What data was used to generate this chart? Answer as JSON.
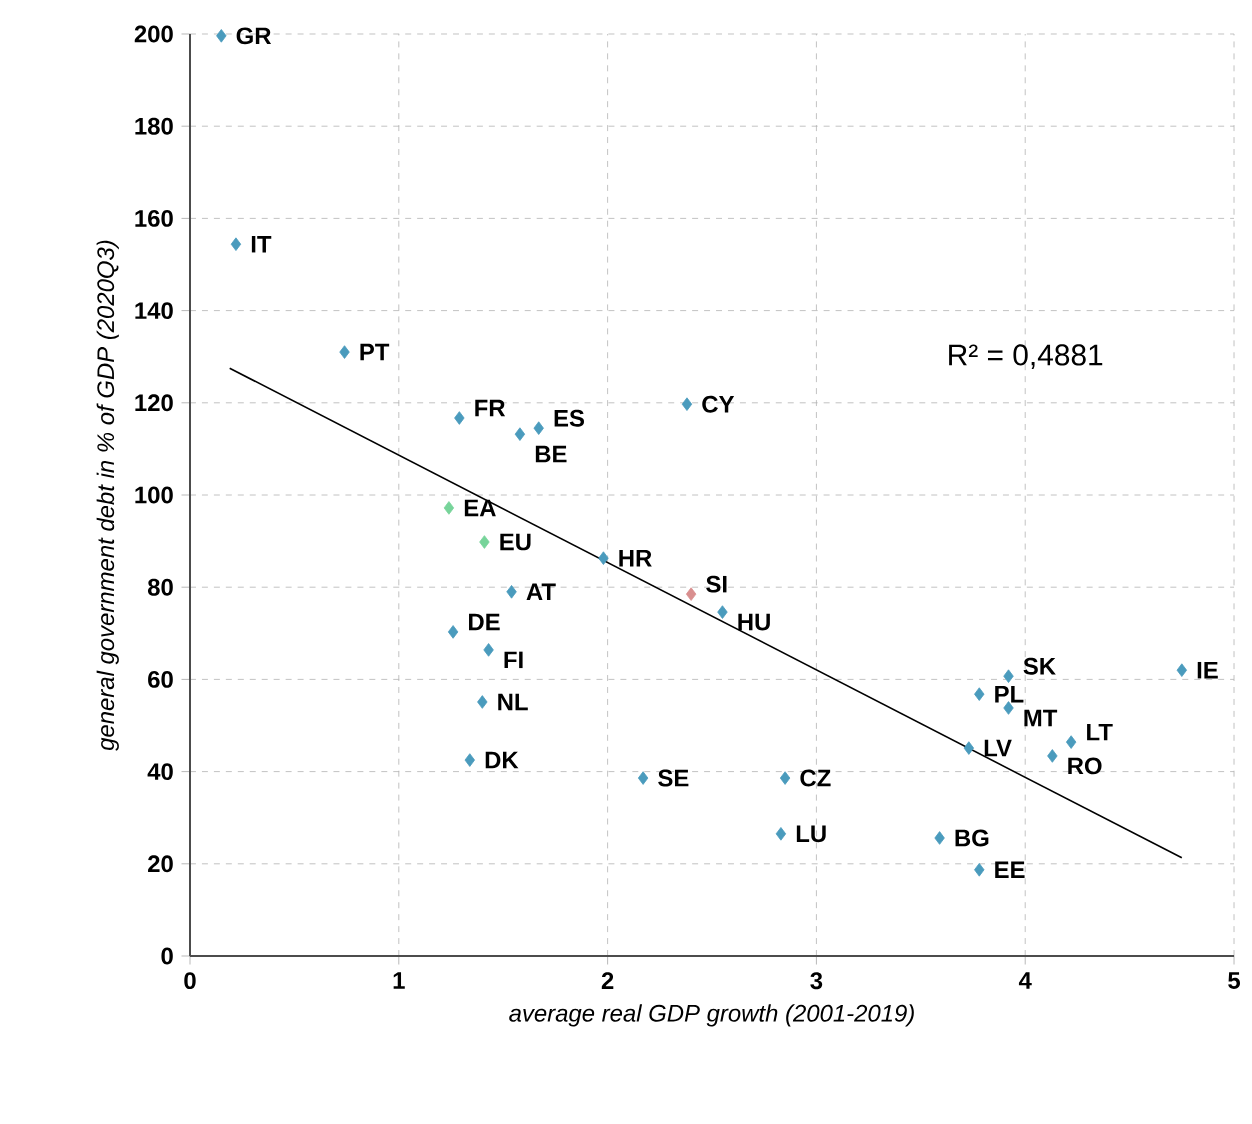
{
  "chart_data": {
    "type": "scatter",
    "xlabel": "average real GDP growth (2001-2019)",
    "ylabel": "general government debt in % of GDP (2020Q3)",
    "xlim": [
      0,
      5
    ],
    "ylim": [
      0,
      200
    ],
    "xticks": [
      0,
      1,
      2,
      3,
      4,
      5
    ],
    "yticks": [
      0,
      20,
      40,
      60,
      80,
      100,
      120,
      140,
      160,
      180,
      200
    ],
    "grid": true,
    "marker": "diamond",
    "series": [
      {
        "color": "#4a9bbd",
        "x": [
          0.15,
          0.22,
          0.74,
          1.29,
          1.58,
          1.67,
          2.38,
          1.98,
          1.54,
          2.55,
          1.26,
          1.43,
          1.4,
          1.34,
          2.17,
          2.85,
          2.83,
          3.59,
          3.78,
          3.73,
          3.78,
          3.92,
          3.92,
          4.22,
          4.13,
          4.75
        ],
        "values": [
          199.6,
          154.4,
          131,
          116.7,
          113.2,
          114.5,
          119.7,
          86.3,
          79,
          74.6,
          70.3,
          66.4,
          55.1,
          42.5,
          38.6,
          38.6,
          26.5,
          25.6,
          18.7,
          45.1,
          56.8,
          60.7,
          53.8,
          46.4,
          43.4,
          62
        ]
      },
      {
        "color": "#77d49a",
        "x": [
          1.24,
          1.41
        ],
        "values": [
          97.2,
          89.8
        ]
      },
      {
        "color": "#d98f8f",
        "x": [
          2.4
        ],
        "values": [
          78.5
        ]
      },
      {
        "type": "line",
        "color": "#000000",
        "marker": "none",
        "x": [
          0.19,
          4.75
        ],
        "values": [
          127.5,
          21.3
        ]
      }
    ],
    "annotations": [
      {
        "text": "GR",
        "x": 0.15,
        "y": 199.6
      },
      {
        "text": "IT",
        "x": 0.22,
        "y": 154.4
      },
      {
        "text": "PT",
        "x": 0.74,
        "y": 131
      },
      {
        "text": "FR",
        "x": 1.29,
        "y": 116.7
      },
      {
        "text": "BE",
        "x": 1.58,
        "y": 113.2
      },
      {
        "text": "ES",
        "x": 1.67,
        "y": 114.5
      },
      {
        "text": "CY",
        "x": 2.38,
        "y": 119.7
      },
      {
        "text": "EA",
        "x": 1.24,
        "y": 97.2
      },
      {
        "text": "EU",
        "x": 1.41,
        "y": 89.8
      },
      {
        "text": "HR",
        "x": 1.98,
        "y": 86.3
      },
      {
        "text": "AT",
        "x": 1.54,
        "y": 79
      },
      {
        "text": "SI",
        "x": 2.4,
        "y": 78.5
      },
      {
        "text": "HU",
        "x": 2.55,
        "y": 74.6
      },
      {
        "text": "DE",
        "x": 1.26,
        "y": 70.3
      },
      {
        "text": "FI",
        "x": 1.43,
        "y": 66.4
      },
      {
        "text": "NL",
        "x": 1.4,
        "y": 55.1
      },
      {
        "text": "DK",
        "x": 1.34,
        "y": 42.5
      },
      {
        "text": "SE",
        "x": 2.17,
        "y": 38.6
      },
      {
        "text": "CZ",
        "x": 2.85,
        "y": 38.6
      },
      {
        "text": "LU",
        "x": 2.83,
        "y": 26.5
      },
      {
        "text": "BG",
        "x": 3.59,
        "y": 25.6
      },
      {
        "text": "EE",
        "x": 3.78,
        "y": 18.7
      },
      {
        "text": "LV",
        "x": 3.73,
        "y": 45.1
      },
      {
        "text": "PL",
        "x": 3.78,
        "y": 56.8
      },
      {
        "text": "SK",
        "x": 3.92,
        "y": 60.7
      },
      {
        "text": "MT",
        "x": 3.92,
        "y": 53.8
      },
      {
        "text": "LT",
        "x": 4.22,
        "y": 46.4
      },
      {
        "text": "RO",
        "x": 4.13,
        "y": 43.4
      },
      {
        "text": "IE",
        "x": 4.75,
        "y": 62
      },
      "R² = 0,4881"
    ]
  }
}
